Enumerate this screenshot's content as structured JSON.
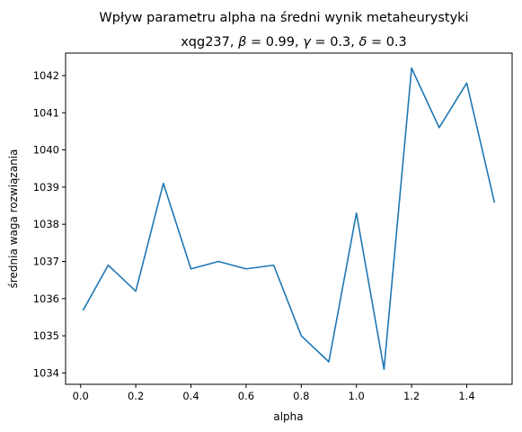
{
  "chart_data": {
    "type": "line",
    "title": "Wpływ parametru alpha na średni wynik metaheurystyki",
    "subtitle_parts": [
      "xqg237, ",
      "β",
      " = 0.99, ",
      "γ",
      " = 0.3, ",
      "δ",
      " = 0.3"
    ],
    "xlabel": "alpha",
    "ylabel": "średnia waga rozwiązania",
    "xlim": [
      -0.0545,
      1.5645
    ],
    "ylim": [
      1033.695,
      1042.605
    ],
    "xticks": [
      0.0,
      0.2,
      0.4,
      0.6,
      0.8,
      1.0,
      1.2,
      1.4
    ],
    "yticks": [
      1034,
      1035,
      1036,
      1037,
      1038,
      1039,
      1040,
      1041,
      1042
    ],
    "grid": false,
    "series": [
      {
        "color": "#1f77b4",
        "x": [
          0.01,
          0.1,
          0.2,
          0.3,
          0.4,
          0.5,
          0.6,
          0.7,
          0.8,
          0.9,
          1.0,
          1.1,
          1.2,
          1.3,
          1.4,
          1.5
        ],
        "y": [
          1035.7,
          1036.9,
          1036.2,
          1039.1,
          1036.8,
          1037.0,
          1036.8,
          1036.9,
          1035.0,
          1034.3,
          1038.3,
          1034.1,
          1042.2,
          1040.6,
          1041.8,
          1038.6
        ]
      }
    ]
  }
}
